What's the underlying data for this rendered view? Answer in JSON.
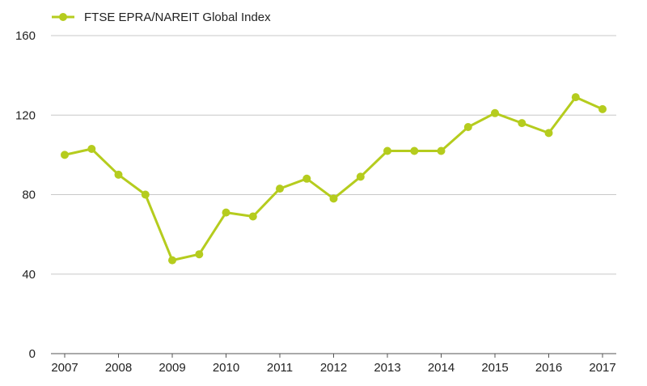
{
  "chart_data": {
    "type": "line",
    "title": "",
    "xlabel": "",
    "ylabel": "",
    "ylim": [
      0,
      160
    ],
    "yticks": [
      0,
      40,
      80,
      120,
      160
    ],
    "xlim": [
      2007,
      2017
    ],
    "xticks": [
      "2007",
      "2008",
      "2009",
      "2010",
      "2011",
      "2012",
      "2013",
      "2014",
      "2015",
      "2016",
      "2017"
    ],
    "grid": "horizontal",
    "legend_position": "top-left",
    "series": [
      {
        "name": "FTSE EPRA/NAREIT Global Index",
        "color": "#b5cc1e",
        "x": [
          2007,
          2007.5,
          2008,
          2008.5,
          2009,
          2009.5,
          2010,
          2010.5,
          2011,
          2011.5,
          2012,
          2012.5,
          2013,
          2013.5,
          2014,
          2014.5,
          2015,
          2015.5,
          2016,
          2016.5,
          2017
        ],
        "values": [
          100,
          103,
          90,
          80,
          47,
          50,
          71,
          69,
          83,
          88,
          78,
          89,
          102,
          102,
          102,
          114,
          121,
          116,
          111,
          129,
          123
        ]
      }
    ]
  }
}
